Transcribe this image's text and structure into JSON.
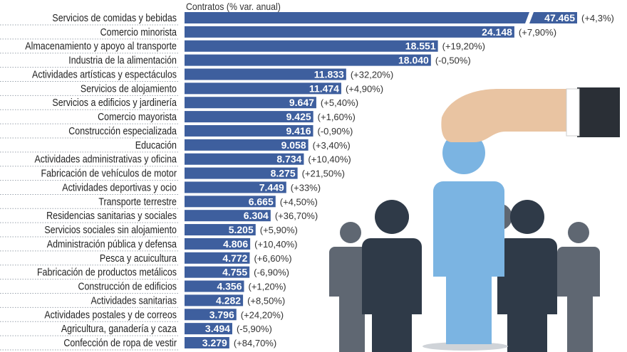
{
  "chart_data": {
    "type": "bar",
    "orientation": "horizontal",
    "title": "Contratos (% var. anual)",
    "xlabel": "",
    "ylabel": "",
    "axis_break_on_first_bar": true,
    "bar_color": "#3e5f9e",
    "categories": [
      "Servicios de comidas y bebidas",
      "Comercio minorista",
      "Almacenamiento y apoyo al transporte",
      "Industria de la alimentación",
      "Actividades artísticas y espectáculos",
      "Servicios de alojamiento",
      "Servicios a edificios y jardinería",
      "Comercio mayorista",
      "Construcción especializada",
      "Educación",
      "Actividades administrativas y oficina",
      "Fabricación de vehículos de motor",
      "Actividades deportivas y ocio",
      "Transporte terrestre",
      "Residencias sanitarias y sociales",
      "Servicios sociales sin alojamiento",
      "Administración pública y defensa",
      "Pesca y acuicultura",
      "Fabricación de productos metálicos",
      "Construcción de edificios",
      "Actividades sanitarias",
      "Actividades postales y de correos",
      "Agricultura, ganadería y caza",
      "Confección de ropa de vestir"
    ],
    "values": [
      47465,
      24148,
      18551,
      18040,
      11833,
      11474,
      9647,
      9425,
      9416,
      9058,
      8734,
      8275,
      7449,
      6665,
      6304,
      5205,
      4806,
      4772,
      4755,
      4356,
      4282,
      3796,
      3494,
      3279
    ],
    "value_labels": [
      "47.465",
      "24.148",
      "18.551",
      "18.040",
      "11.833",
      "11.474",
      "9.647",
      "9.425",
      "9.416",
      "9.058",
      "8.734",
      "8.275",
      "7.449",
      "6.665",
      "6.304",
      "5.205",
      "4.806",
      "4.772",
      "4.755",
      "4.356",
      "4.282",
      "3.796",
      "3.494",
      "3.279"
    ],
    "change_labels": [
      "(+4,3%)",
      "(+7,90%)",
      "(+19,20%)",
      "(-0,50%)",
      "(+32,20%)",
      "(+4,90%)",
      "(+5,40%)",
      "(+1,60%)",
      "(-0,90%)",
      "(+3,40%)",
      "(+10,40%)",
      "(+21,50%)",
      "(+33%)",
      "(+4,50%)",
      "(+36,70%)",
      "(+5,90%)",
      "(+10,40%)",
      "(+6,60%)",
      "(-6,90%)",
      "(+1,20%)",
      "(+8,50%)",
      "(+24,20%)",
      "(-5,90%)",
      "(+84,70%)"
    ]
  }
}
